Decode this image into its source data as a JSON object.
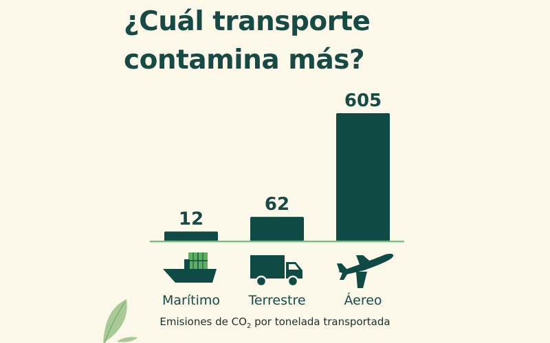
{
  "title_lines": [
    "¿Cuál transporte",
    "contamina más?"
  ],
  "caption": {
    "before": "Emisiones de CO",
    "sub": "2",
    "after": " por tonelada transportada"
  },
  "colors": {
    "background": "#fcf8ea",
    "bar": "#0f4a44",
    "baseline": "#7bbf7e",
    "text": "#174a45",
    "accent": "#5fae62"
  },
  "chart_data": {
    "type": "bar",
    "categories": [
      "Marítimo",
      "Terrestre",
      "Áereo"
    ],
    "values": [
      12,
      62,
      605
    ],
    "icons": [
      "ship-icon",
      "truck-icon",
      "airplane-icon"
    ],
    "data_labels": [
      "12",
      "62",
      "605"
    ],
    "grid": false,
    "legend": "none"
  }
}
